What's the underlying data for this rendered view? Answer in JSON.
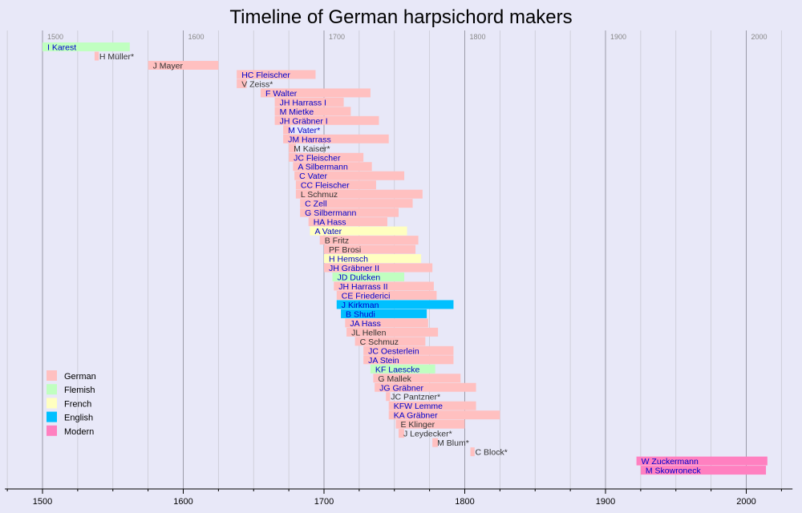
{
  "chart_data": {
    "type": "timeline",
    "title": "Timeline of German harpsichord makers",
    "xlim": [
      1475,
      2030
    ],
    "major_ticks": [
      1500,
      1600,
      1700,
      1800,
      1900,
      2000
    ],
    "minor_step": 25,
    "colors": {
      "German": "#ffc0c0",
      "Flemish": "#c0ffc0",
      "French": "#ffffc0",
      "English": "#00c0ff",
      "Modern": "#ff80c0",
      "link": "#0000cc",
      "plain": "#333333"
    },
    "legend": [
      {
        "label": "German",
        "color": "#ffc0c0"
      },
      {
        "label": "Flemish",
        "color": "#c0ffc0"
      },
      {
        "label": "French",
        "color": "#ffffc0"
      },
      {
        "label": "English",
        "color": "#00c0ff"
      },
      {
        "label": "Modern",
        "color": "#ff80c0"
      }
    ],
    "bars": [
      {
        "name": "I Karest",
        "start": 1500,
        "end": 1562,
        "category": "Flemish",
        "link": true
      },
      {
        "name": "H Müller*",
        "start": 1537,
        "end": 1540,
        "category": "German",
        "link": false
      },
      {
        "name": "J Mayer",
        "start": 1575,
        "end": 1625,
        "category": "German",
        "link": false
      },
      {
        "name": "HC Fleischer",
        "start": 1638,
        "end": 1694,
        "category": "German",
        "link": true
      },
      {
        "name": "V Zeiss*",
        "start": 1638,
        "end": 1645,
        "category": "German",
        "link": false
      },
      {
        "name": "F Walter",
        "start": 1655,
        "end": 1733,
        "category": "German",
        "link": true
      },
      {
        "name": "JH Harrass I",
        "start": 1665,
        "end": 1714,
        "category": "German",
        "link": true
      },
      {
        "name": "M Mietke",
        "start": 1665,
        "end": 1719,
        "category": "German",
        "link": true
      },
      {
        "name": "JH Gräbner I",
        "start": 1665,
        "end": 1739,
        "category": "German",
        "link": true
      },
      {
        "name": "M Vater*",
        "start": 1671,
        "end": 1676,
        "category": "German",
        "link": true
      },
      {
        "name": "JM Harrass",
        "start": 1671,
        "end": 1746,
        "category": "German",
        "link": true
      },
      {
        "name": "M Kaiser*",
        "start": 1675,
        "end": 1680,
        "category": "German",
        "link": false
      },
      {
        "name": "JC Fleischer",
        "start": 1675,
        "end": 1728,
        "category": "German",
        "link": true
      },
      {
        "name": "A Silbermann",
        "start": 1678,
        "end": 1734,
        "category": "German",
        "link": true
      },
      {
        "name": "C Vater",
        "start": 1679,
        "end": 1757,
        "category": "German",
        "link": true
      },
      {
        "name": "CC Fleischer",
        "start": 1680,
        "end": 1737,
        "category": "German",
        "link": true
      },
      {
        "name": "L Schmuz",
        "start": 1680,
        "end": 1770,
        "category": "German",
        "link": false
      },
      {
        "name": "C Zell",
        "start": 1683,
        "end": 1763,
        "category": "German",
        "link": true
      },
      {
        "name": "G Silbermann",
        "start": 1683,
        "end": 1753,
        "category": "German",
        "link": true
      },
      {
        "name": "HA Hass",
        "start": 1689,
        "end": 1745,
        "category": "German",
        "link": true
      },
      {
        "name": "A Vater",
        "start": 1690,
        "end": 1759,
        "category": "French",
        "link": true
      },
      {
        "name": "B Fritz",
        "start": 1697,
        "end": 1767,
        "category": "German",
        "link": false
      },
      {
        "name": "PF Brosi",
        "start": 1700,
        "end": 1765,
        "category": "German",
        "link": false
      },
      {
        "name": "H Hemsch",
        "start": 1700,
        "end": 1769,
        "category": "French",
        "link": true
      },
      {
        "name": "JH Gräbner II",
        "start": 1700,
        "end": 1777,
        "category": "German",
        "link": true
      },
      {
        "name": "JD Dulcken",
        "start": 1706,
        "end": 1757,
        "category": "Flemish",
        "link": true
      },
      {
        "name": "JH Harrass II",
        "start": 1707,
        "end": 1778,
        "category": "German",
        "link": true
      },
      {
        "name": "CE Friederici",
        "start": 1709,
        "end": 1780,
        "category": "German",
        "link": true
      },
      {
        "name": "J Kirkman",
        "start": 1709,
        "end": 1792,
        "category": "English",
        "link": true
      },
      {
        "name": "B Shudi",
        "start": 1712,
        "end": 1773,
        "category": "English",
        "link": true
      },
      {
        "name": "JA Hass",
        "start": 1715,
        "end": 1774,
        "category": "German",
        "link": true
      },
      {
        "name": "JL Hellen",
        "start": 1716,
        "end": 1781,
        "category": "German",
        "link": false
      },
      {
        "name": "C Schmuz",
        "start": 1722,
        "end": 1772,
        "category": "German",
        "link": false
      },
      {
        "name": "JC Oesterlein",
        "start": 1728,
        "end": 1792,
        "category": "German",
        "link": true
      },
      {
        "name": "JA Stein",
        "start": 1728,
        "end": 1792,
        "category": "German",
        "link": true
      },
      {
        "name": "KF Laescke",
        "start": 1733,
        "end": 1779,
        "category": "Flemish",
        "link": true
      },
      {
        "name": "G Mallek",
        "start": 1735,
        "end": 1797,
        "category": "German",
        "link": false
      },
      {
        "name": "JG Gräbner",
        "start": 1736,
        "end": 1808,
        "category": "German",
        "link": true
      },
      {
        "name": "JC Pantzner*",
        "start": 1744,
        "end": 1747,
        "category": "German",
        "link": false
      },
      {
        "name": "KFW Lemme",
        "start": 1746,
        "end": 1808,
        "category": "German",
        "link": true
      },
      {
        "name": "KA Gräbner",
        "start": 1746,
        "end": 1825,
        "category": "German",
        "link": true
      },
      {
        "name": "E Klinger",
        "start": 1751,
        "end": 1800,
        "category": "German",
        "link": false
      },
      {
        "name": "J Leydecker*",
        "start": 1753,
        "end": 1757,
        "category": "German",
        "link": false
      },
      {
        "name": "M Blum*",
        "start": 1777,
        "end": 1781,
        "category": "German",
        "link": false
      },
      {
        "name": "C Block*",
        "start": 1804,
        "end": 1807,
        "category": "German",
        "link": false
      },
      {
        "name": "W Zuckermann",
        "start": 1922,
        "end": 2015,
        "category": "Modern",
        "link": true
      },
      {
        "name": "M Skowroneck",
        "start": 1925,
        "end": 2014,
        "category": "Modern",
        "link": true
      }
    ]
  }
}
